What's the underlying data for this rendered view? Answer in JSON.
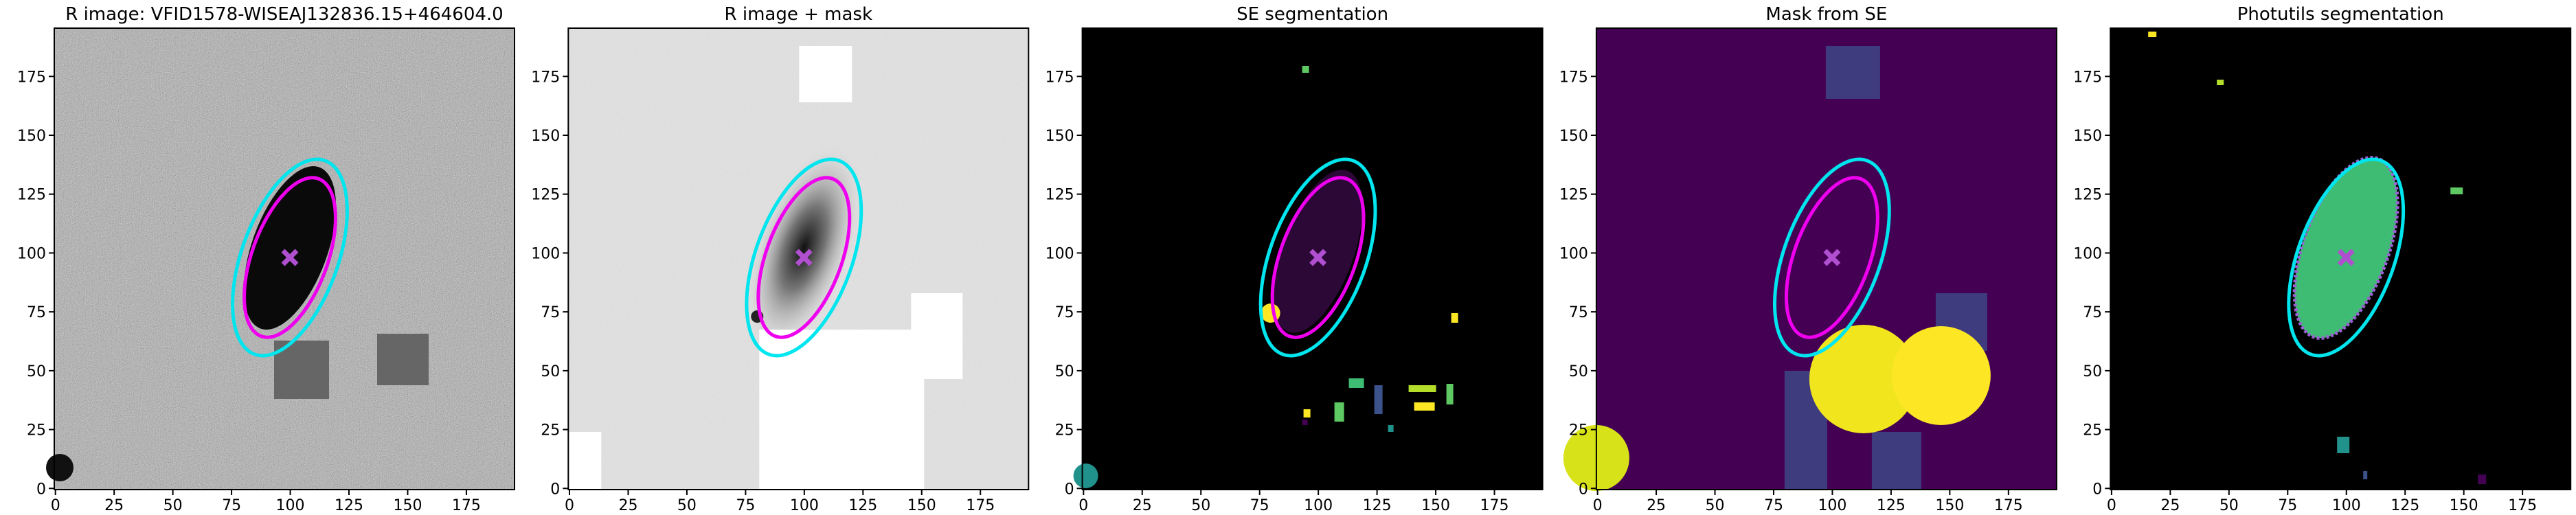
{
  "chart_data": [
    {
      "type": "image",
      "title": "R image: VFID1578-WISEAJ132836.15+464604.0",
      "xlim": [
        -0.5,
        195.5
      ],
      "ylim": [
        -0.5,
        195.5
      ],
      "xticks": [
        0,
        25,
        50,
        75,
        100,
        125,
        150,
        175
      ],
      "yticks": [
        0,
        25,
        50,
        75,
        100,
        125,
        150,
        175
      ]
    },
    {
      "type": "image",
      "title": "R image + mask",
      "xlim": [
        -0.5,
        195.5
      ],
      "ylim": [
        -0.5,
        195.5
      ],
      "xticks": [
        0,
        25,
        50,
        75,
        100,
        125,
        150,
        175
      ],
      "yticks": [
        0,
        25,
        50,
        75,
        100,
        125,
        150,
        175
      ]
    },
    {
      "type": "image",
      "title": "SE segmentation",
      "xlim": [
        -0.5,
        195.5
      ],
      "ylim": [
        -0.5,
        195.5
      ],
      "xticks": [
        0,
        25,
        50,
        75,
        100,
        125,
        150,
        175
      ],
      "yticks": [
        0,
        25,
        50,
        75,
        100,
        125,
        150,
        175
      ]
    },
    {
      "type": "image",
      "title": "Mask from SE",
      "xlim": [
        -0.5,
        195.5
      ],
      "ylim": [
        -0.5,
        195.5
      ],
      "xticks": [
        0,
        25,
        50,
        75,
        100,
        125,
        150,
        175
      ],
      "yticks": [
        0,
        25,
        50,
        75,
        100,
        125,
        150,
        175
      ]
    },
    {
      "type": "image",
      "title": "Photutils segmentation",
      "xlim": [
        -0.5,
        195.5
      ],
      "ylim": [
        -0.5,
        195.5
      ],
      "xticks": [
        0,
        25,
        50,
        75,
        100,
        125,
        150,
        175
      ],
      "yticks": [
        0,
        25,
        50,
        75,
        100,
        125,
        150,
        175
      ]
    }
  ]
}
